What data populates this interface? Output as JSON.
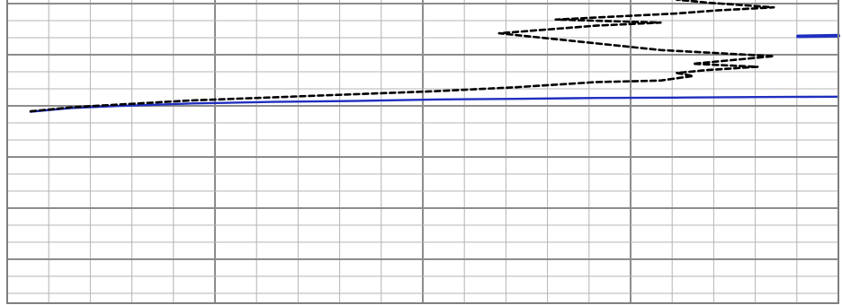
{
  "chart_data": {
    "type": "line",
    "title": "",
    "xlabel": "",
    "ylabel": "",
    "xlim": [
      0,
      100
    ],
    "ylim": [
      0,
      100
    ],
    "grid": true,
    "legend": "none",
    "series": [
      {
        "color": "#1f2fbf",
        "style": "solid",
        "points": [
          [
            0,
            62.8
          ],
          [
            5,
            64.0
          ],
          [
            10,
            64.6
          ],
          [
            20,
            65.5
          ],
          [
            30,
            66.0
          ],
          [
            40,
            66.3
          ],
          [
            50,
            66.8
          ],
          [
            60,
            67.0
          ],
          [
            70,
            67.3
          ],
          [
            80,
            67.4
          ],
          [
            90,
            67.6
          ],
          [
            100,
            67.7
          ]
        ]
      },
      {
        "color": "#1f2fbf",
        "style": "solid",
        "points": [
          [
            95,
            87.5
          ],
          [
            100,
            87.7
          ]
        ]
      },
      {
        "color": "#000000",
        "style": "dashed",
        "points": [
          [
            0,
            62.9
          ],
          [
            5,
            64.2
          ],
          [
            10,
            65.0
          ],
          [
            20,
            66.5
          ],
          [
            30,
            67.5
          ],
          [
            40,
            68.5
          ],
          [
            50,
            69.5
          ],
          [
            60,
            70.8
          ],
          [
            70,
            72.5
          ],
          [
            78,
            73.0
          ],
          [
            82,
            74.5
          ],
          [
            80,
            75.5
          ],
          [
            84,
            76.5
          ],
          [
            90,
            77.5
          ],
          [
            82,
            78.5
          ],
          [
            88,
            80.0
          ],
          [
            92,
            81.0
          ],
          [
            85,
            82.0
          ],
          [
            78,
            83.0
          ],
          [
            58,
            88.5
          ],
          [
            70,
            91.0
          ],
          [
            78,
            92.0
          ],
          [
            65,
            93.0
          ],
          [
            80,
            95.0
          ],
          [
            85,
            96.0
          ],
          [
            92,
            97.0
          ],
          [
            84,
            98.5
          ],
          [
            80,
            99.5
          ],
          [
            85,
            100.0
          ]
        ]
      }
    ]
  }
}
